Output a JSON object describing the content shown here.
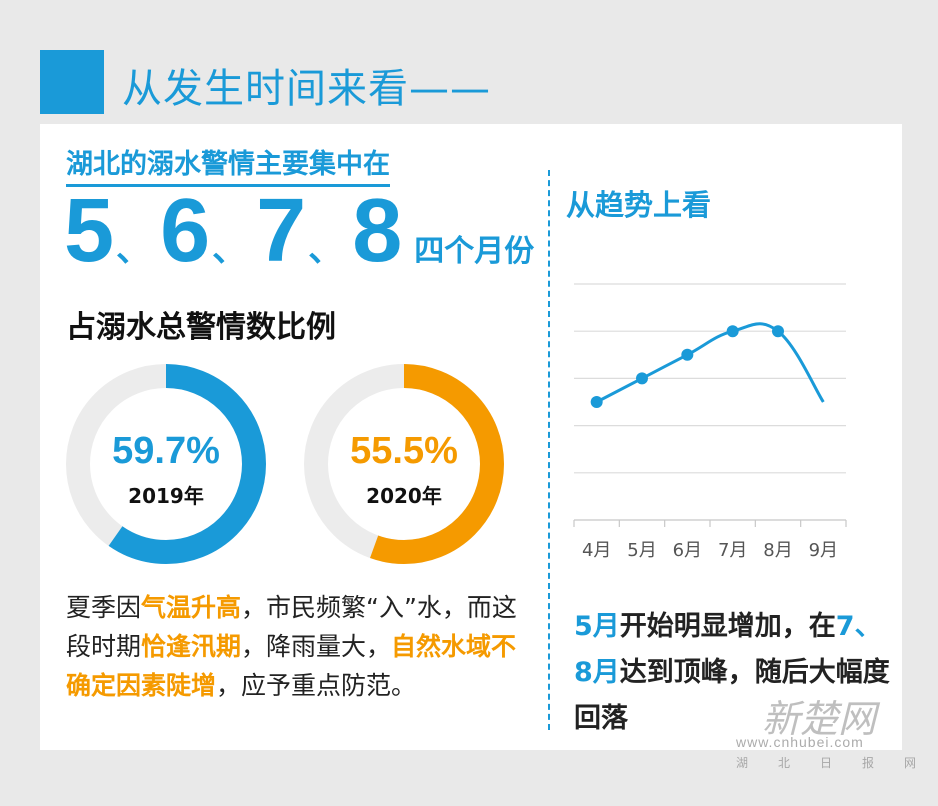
{
  "header": {
    "title": "从发生时间来看——"
  },
  "intro": "湖北的溺水警情主要集中在",
  "months": {
    "items": [
      "5",
      "6",
      "7",
      "8"
    ],
    "separator": "、",
    "suffix": "四个月份"
  },
  "ratio_title": "占溺水总警情数比例",
  "donuts": [
    {
      "value": "59.7%",
      "fraction": 0.597,
      "year": "2019年",
      "color": "#1a9ad8"
    },
    {
      "value": "55.5%",
      "fraction": 0.555,
      "year": "2020年",
      "color": "#f59a00"
    }
  ],
  "description": {
    "parts": [
      {
        "text": "夏季因",
        "hl": false
      },
      {
        "text": "气温升高",
        "hl": true
      },
      {
        "text": "，市民频繁“入”水，而这段时期",
        "hl": false
      },
      {
        "text": "恰逢汛期",
        "hl": true
      },
      {
        "text": "，降雨量大，",
        "hl": false
      },
      {
        "text": "自然水域不确定因素陡增",
        "hl": true
      },
      {
        "text": "，应予重点防范。",
        "hl": false
      }
    ]
  },
  "trend": {
    "title": "从趋势上看",
    "summary": [
      {
        "text": "5月",
        "blue": true
      },
      {
        "text": "开始明显增加，在",
        "blue": false
      },
      {
        "text": "7、8月",
        "blue": true
      },
      {
        "text": "达到顶峰，随后大幅度回落",
        "blue": false
      }
    ]
  },
  "chart_data": {
    "type": "line",
    "categories": [
      "4月",
      "5月",
      "6月",
      "7月",
      "8月",
      "9月"
    ],
    "values": [
      2.5,
      3.0,
      3.5,
      4.0,
      4.0,
      2.5
    ],
    "ylim": [
      0,
      5
    ],
    "grid": true,
    "markers": [
      true,
      true,
      true,
      true,
      true,
      false
    ],
    "color": "#1a9ad8"
  },
  "watermark": {
    "main": "新楚网",
    "url": "www.cnhubei.com",
    "sub": [
      "湖",
      "北",
      "日",
      "报",
      "网"
    ]
  }
}
